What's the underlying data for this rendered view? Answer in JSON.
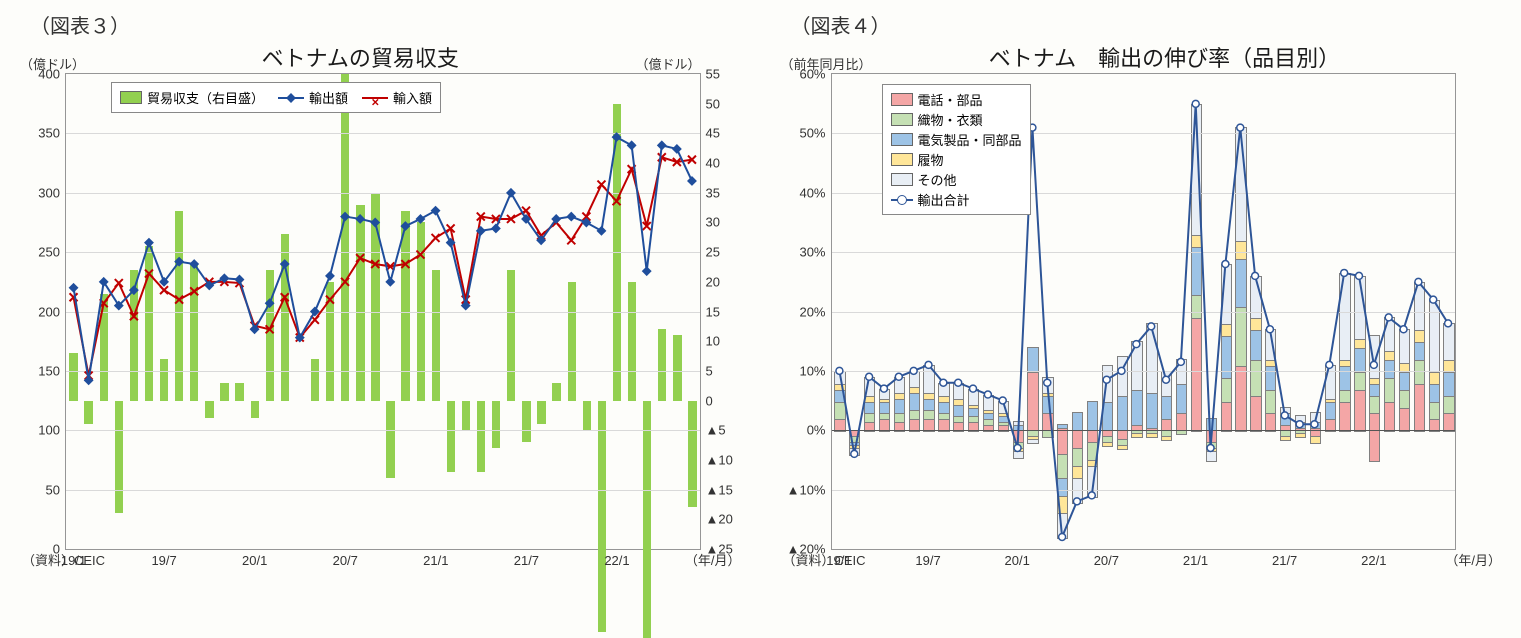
{
  "chart3": {
    "fig_label": "（図表３）",
    "title": "ベトナムの貿易収支",
    "y_left_unit": "（億ドル）",
    "y_right_unit": "（億ドル）",
    "y_left": {
      "min": 0,
      "max": 400,
      "step": 50
    },
    "y_right": {
      "min": -25,
      "max": 55,
      "step": 5,
      "neg_prefix": "▲"
    },
    "x_ticks": [
      "19/1",
      "19/7",
      "20/1",
      "20/7",
      "21/1",
      "21/7",
      "22/1"
    ],
    "x_axis_label": "（年/月）",
    "source": "（資料）CEIC",
    "legend": {
      "balance": "貿易収支（右目盛）",
      "exports": "輸出額",
      "imports": "輸入額"
    },
    "colors": {
      "balance_bar": "#92d050",
      "exports_line": "#1f4e9c",
      "exports_marker": "#1f4e9c",
      "imports_line": "#c00000",
      "imports_marker": "#c00000",
      "grid": "#d9d9d9",
      "border": "#969696",
      "bg": "#ffffff"
    },
    "n_points": 42,
    "exports": [
      220,
      142,
      225,
      205,
      218,
      258,
      225,
      242,
      240,
      222,
      228,
      227,
      185,
      207,
      240,
      178,
      200,
      230,
      280,
      278,
      275,
      225,
      272,
      278,
      285,
      258,
      205,
      268,
      270,
      300,
      278,
      260,
      278,
      280,
      275,
      268,
      347,
      340,
      234,
      340,
      337,
      310
    ],
    "imports": [
      212,
      146,
      207,
      224,
      196,
      232,
      218,
      210,
      217,
      225,
      225,
      224,
      188,
      185,
      212,
      178,
      193,
      210,
      225,
      245,
      240,
      238,
      240,
      248,
      262,
      270,
      210,
      280,
      278,
      278,
      285,
      264,
      275,
      260,
      280,
      307,
      293,
      320,
      272,
      330,
      326,
      328
    ],
    "balance": [
      8,
      -4,
      18,
      -19,
      22,
      26,
      7,
      32,
      23,
      -3,
      3,
      3,
      -3,
      22,
      28,
      0,
      7,
      20,
      55,
      33,
      35,
      -13,
      32,
      30,
      22,
      -12,
      -5,
      -12,
      -8,
      22,
      -7,
      -4,
      3,
      20,
      -5,
      -39,
      50,
      20,
      -40,
      12,
      11,
      -18
    ]
  },
  "chart4": {
    "fig_label": "（図表４）",
    "title": "ベトナム　輸出の伸び率（品目別）",
    "y_unit": "（前年同月比）",
    "y": {
      "min": -20,
      "max": 60,
      "step": 10,
      "neg_prefix": "▲",
      "suffix": "%"
    },
    "x_ticks": [
      "19/1",
      "19/7",
      "20/1",
      "20/7",
      "21/1",
      "21/7",
      "22/1"
    ],
    "x_axis_label": "（年/月）",
    "source": "（資料）CEIC",
    "legend": {
      "phones": "電話・部品",
      "textiles": "織物・衣類",
      "electronics": "電気製品・同部品",
      "footwear": "履物",
      "other": "その他",
      "total": "輸出合計"
    },
    "colors": {
      "phones": "#f4a6a6",
      "textiles": "#c5e0b4",
      "electronics": "#9dc3e6",
      "footwear": "#ffe699",
      "other": "#e8eef5",
      "total_line": "#2e5597",
      "total_marker_fill": "#ffffff",
      "total_marker_stroke": "#2e5597",
      "grid": "#d9d9d9",
      "border": "#969696",
      "bg": "#ffffff",
      "bar_border": "#808080"
    },
    "n_points": 42,
    "stacks": [
      {
        "p": [
          2,
          3,
          2,
          1,
          2
        ],
        "n": [
          0,
          0,
          0,
          0,
          0
        ]
      },
      {
        "p": [
          0,
          0,
          0,
          0,
          0
        ],
        "n": [
          -1,
          -1,
          -0.5,
          -0.5,
          -1
        ]
      },
      {
        "p": [
          1.5,
          1.5,
          2,
          1,
          3
        ],
        "n": [
          0,
          0,
          0,
          0,
          0
        ]
      },
      {
        "p": [
          2,
          1,
          2,
          0.5,
          1.5
        ],
        "n": [
          0,
          0,
          0,
          0,
          0
        ]
      },
      {
        "p": [
          1.5,
          1.5,
          2.5,
          1,
          2.5
        ],
        "n": [
          0,
          0,
          0,
          0,
          0
        ]
      },
      {
        "p": [
          2,
          1.5,
          3,
          1,
          2.5
        ],
        "n": [
          0,
          0,
          0,
          0,
          0
        ]
      },
      {
        "p": [
          2,
          1.5,
          2,
          1,
          4.5
        ],
        "n": [
          0,
          0,
          0,
          0,
          0
        ]
      },
      {
        "p": [
          2,
          1,
          2,
          1,
          2
        ],
        "n": [
          0,
          0,
          0,
          0,
          0
        ]
      },
      {
        "p": [
          1.5,
          1,
          2,
          1,
          2.5
        ],
        "n": [
          0,
          0,
          0,
          0,
          0
        ]
      },
      {
        "p": [
          1.5,
          1,
          1.5,
          0.5,
          2.5
        ],
        "n": [
          0,
          0,
          0,
          0,
          0
        ]
      },
      {
        "p": [
          1,
          1,
          1,
          0.5,
          2.5
        ],
        "n": [
          0,
          0,
          0,
          0,
          0
        ]
      },
      {
        "p": [
          1,
          0.5,
          1,
          0.5,
          2
        ],
        "n": [
          0,
          0,
          0,
          0,
          0
        ]
      },
      {
        "p": [
          0,
          0,
          1,
          0,
          0.5
        ],
        "n": [
          -2,
          -1,
          0,
          -0.5,
          -1
        ]
      },
      {
        "p": [
          10,
          0,
          4,
          0,
          0
        ],
        "n": [
          0,
          -1,
          0,
          -0.5,
          -0.5
        ]
      },
      {
        "p": [
          3,
          0,
          3,
          0.5,
          2.5
        ],
        "n": [
          0,
          -1,
          0,
          0,
          0
        ]
      },
      {
        "p": [
          0.5,
          0,
          0.5,
          0,
          0
        ],
        "n": [
          -4,
          -4,
          -3,
          -3,
          -4
        ]
      },
      {
        "p": [
          0,
          0,
          3,
          0,
          0
        ],
        "n": [
          -3,
          -3,
          0,
          -2,
          -4
        ]
      },
      {
        "p": [
          0,
          0,
          5,
          0,
          0
        ],
        "n": [
          -2,
          -3,
          0,
          -1,
          -5
        ]
      },
      {
        "p": [
          0,
          0,
          5,
          0,
          6
        ],
        "n": [
          -1,
          -1,
          0,
          -0.5,
          0
        ]
      },
      {
        "p": [
          0,
          0,
          6,
          0,
          6.5
        ],
        "n": [
          -1.5,
          -1,
          0,
          -0.5,
          0
        ]
      },
      {
        "p": [
          1,
          0,
          6,
          0,
          8
        ],
        "n": [
          0,
          -0.5,
          0,
          -0.5,
          0
        ]
      },
      {
        "p": [
          0.5,
          0,
          6,
          0,
          11.5
        ],
        "n": [
          0,
          -0.5,
          0,
          -0.5,
          0
        ]
      },
      {
        "p": [
          2,
          0,
          4,
          0,
          4
        ],
        "n": [
          0,
          -1,
          0,
          -0.5,
          0
        ]
      },
      {
        "p": [
          3,
          0,
          5,
          0,
          4
        ],
        "n": [
          0,
          -0.5,
          0,
          0,
          0
        ]
      },
      {
        "p": [
          19,
          4,
          8,
          2,
          22
        ],
        "n": [
          0,
          0,
          0,
          0,
          0
        ]
      },
      {
        "p": [
          0,
          0,
          2,
          0,
          0
        ],
        "n": [
          -2,
          -1,
          0,
          -0.5,
          -1.5
        ]
      },
      {
        "p": [
          5,
          4,
          7,
          2,
          10
        ],
        "n": [
          0,
          0,
          0,
          0,
          0
        ]
      },
      {
        "p": [
          11,
          10,
          8,
          3,
          19
        ],
        "n": [
          0,
          0,
          0,
          0,
          0
        ]
      },
      {
        "p": [
          6,
          6,
          5,
          2,
          7
        ],
        "n": [
          0,
          0,
          0,
          0,
          0
        ]
      },
      {
        "p": [
          3,
          4,
          4,
          1,
          5
        ],
        "n": [
          0,
          0,
          0,
          0,
          0
        ]
      },
      {
        "p": [
          1,
          0,
          2,
          0,
          1
        ],
        "n": [
          0,
          -1,
          0,
          -0.5,
          0
        ]
      },
      {
        "p": [
          0.5,
          0,
          1,
          0,
          1
        ],
        "n": [
          0,
          -0.5,
          0,
          -0.5,
          0
        ]
      },
      {
        "p": [
          0.5,
          0,
          1,
          0,
          1.5
        ],
        "n": [
          -1,
          0,
          0,
          -1,
          0
        ]
      },
      {
        "p": [
          2,
          0,
          3,
          0.5,
          5.5
        ],
        "n": [
          0,
          0,
          0,
          0,
          0
        ]
      },
      {
        "p": [
          5,
          2,
          4,
          1,
          14.5
        ],
        "n": [
          0,
          0,
          0,
          0,
          0
        ]
      },
      {
        "p": [
          7,
          3,
          4,
          1.5,
          10.5
        ],
        "n": [
          0,
          0,
          0,
          0,
          0
        ]
      },
      {
        "p": [
          3,
          3,
          2,
          1,
          7
        ],
        "n": [
          -5,
          0,
          0,
          0,
          0
        ]
      },
      {
        "p": [
          5,
          4,
          3,
          1.5,
          5.5
        ],
        "n": [
          0,
          0,
          0,
          0,
          0
        ]
      },
      {
        "p": [
          4,
          3,
          3,
          1.5,
          5.5
        ],
        "n": [
          0,
          0,
          0,
          0,
          0
        ]
      },
      {
        "p": [
          8,
          4,
          3,
          2,
          8
        ],
        "n": [
          0,
          0,
          0,
          0,
          0
        ]
      },
      {
        "p": [
          2,
          3,
          3,
          2,
          12
        ],
        "n": [
          0,
          0,
          0,
          0,
          0
        ]
      },
      {
        "p": [
          3,
          3,
          4,
          2,
          6
        ],
        "n": [
          0,
          0,
          0,
          0,
          0
        ]
      }
    ],
    "total": [
      10,
      -4,
      9,
      7,
      9,
      10,
      11,
      8,
      8,
      7,
      6,
      5,
      -3,
      51,
      8,
      -18,
      -12,
      -11,
      8.5,
      10,
      14.5,
      17.5,
      8.5,
      11.5,
      55,
      -3,
      28,
      51,
      26,
      17,
      2.5,
      1,
      1,
      11,
      26.5,
      26,
      11,
      19,
      17,
      25,
      22,
      18
    ]
  }
}
